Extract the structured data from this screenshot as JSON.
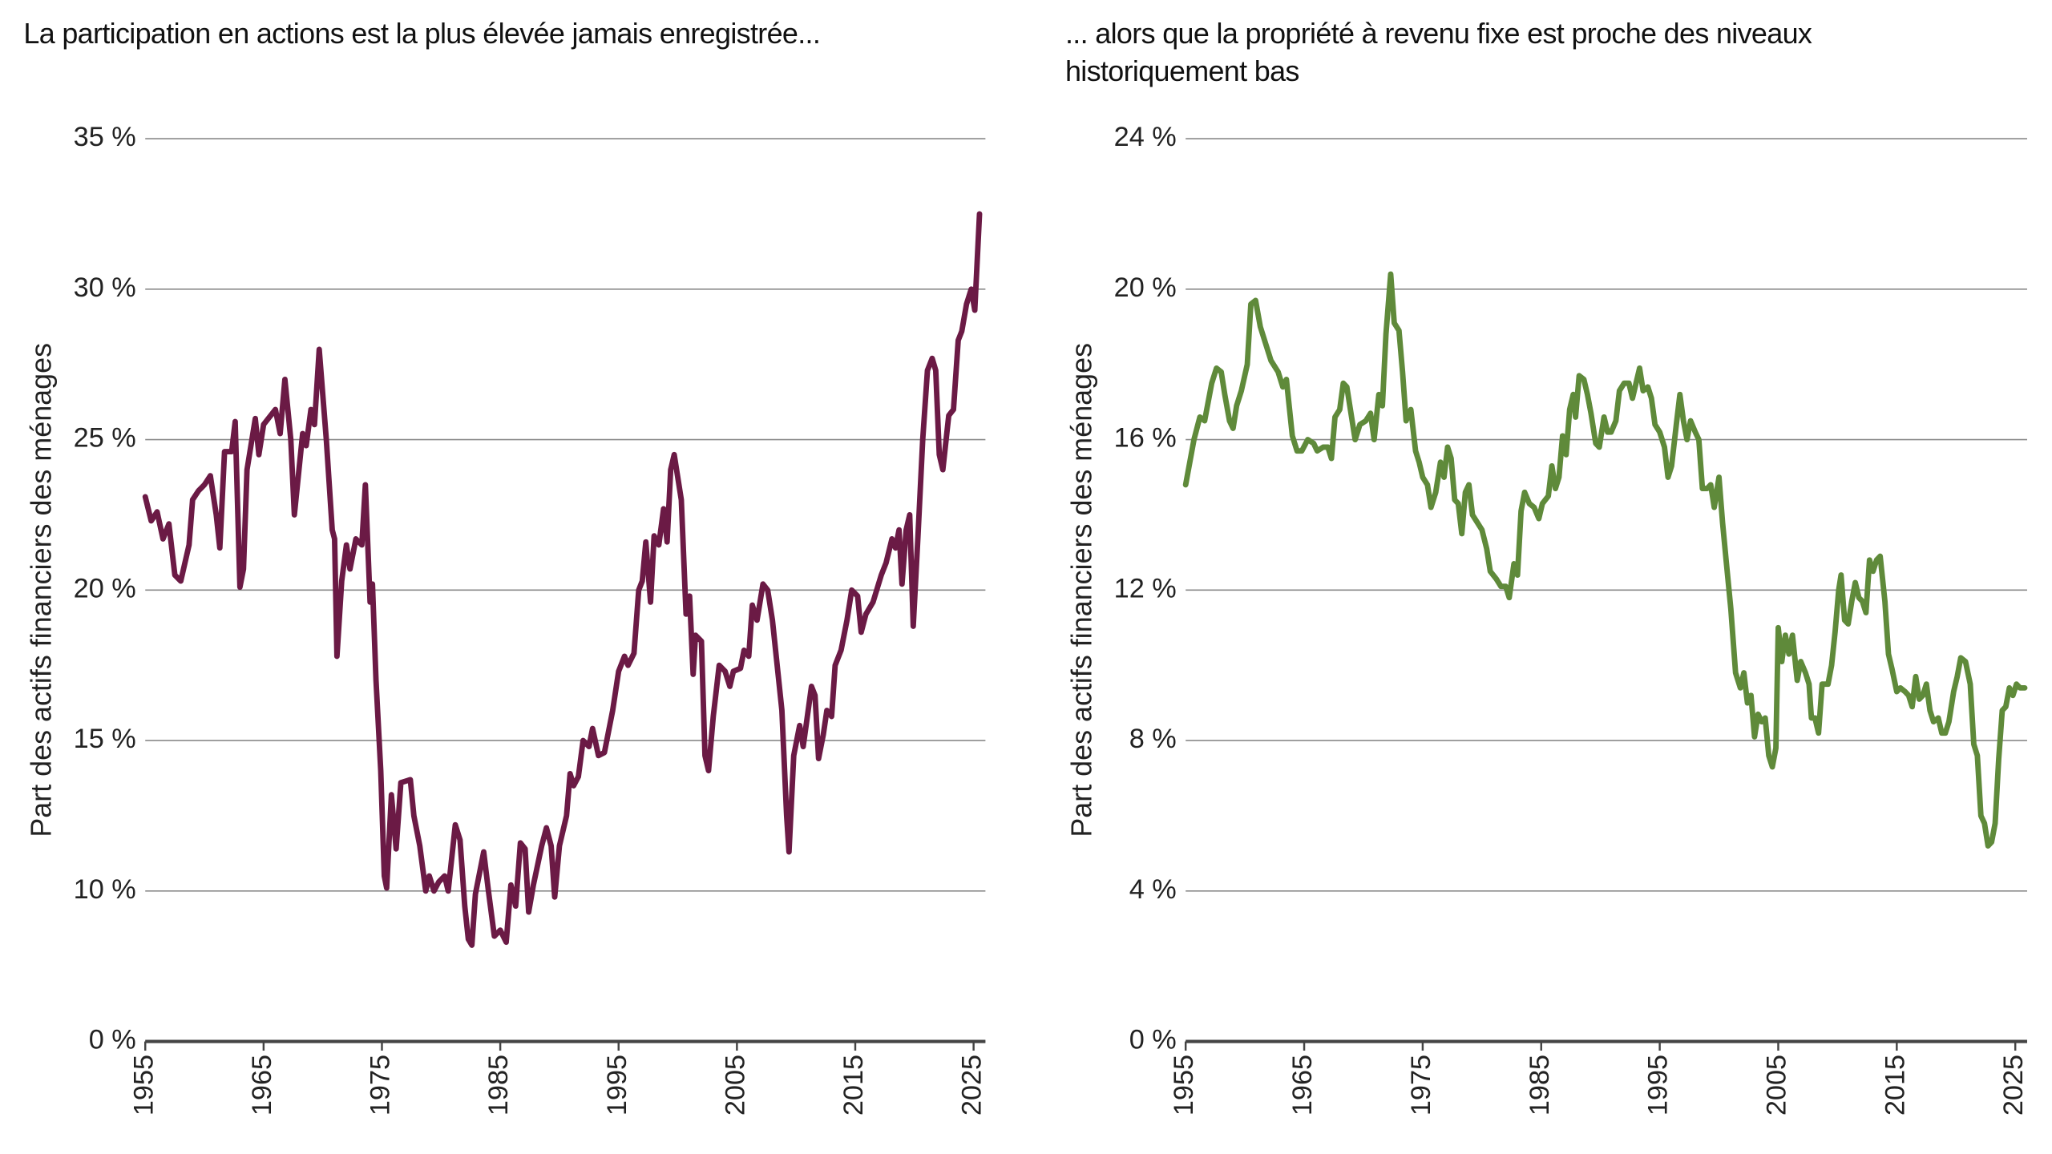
{
  "chart_data": [
    {
      "type": "line",
      "title": "La participation en actions est la plus élevée jamais enregistrée...",
      "ylabel": "Part des actifs financiers des ménages",
      "color": "#6b1a45",
      "xlim": [
        1955,
        2026
      ],
      "xticks": [
        1955,
        1965,
        1975,
        1985,
        1995,
        2005,
        2015,
        2025
      ],
      "ylim": [
        0,
        35
      ],
      "y_break": [
        0,
        5
      ],
      "yticks": [
        {
          "value": 0,
          "label": "0 %"
        },
        {
          "value": 10,
          "label": "10 %"
        },
        {
          "value": 15,
          "label": "15 %"
        },
        {
          "value": 20,
          "label": "20 %"
        },
        {
          "value": 25,
          "label": "25 %"
        },
        {
          "value": 30,
          "label": "30 %"
        },
        {
          "value": 35,
          "label": "35 %"
        }
      ],
      "grid": true,
      "x": [
        1955.0,
        1955.5,
        1956.0,
        1956.5,
        1957.0,
        1957.5,
        1958.0,
        1958.7,
        1959.0,
        1959.5,
        1960.0,
        1960.5,
        1961.0,
        1961.3,
        1961.7,
        1962.3,
        1962.6,
        1963.0,
        1963.3,
        1963.6,
        1964.3,
        1964.6,
        1965.0,
        1966.0,
        1966.4,
        1966.8,
        1967.3,
        1967.6,
        1968.3,
        1968.6,
        1969.0,
        1969.3,
        1969.7,
        1970.3,
        1970.8,
        1971.0,
        1971.2,
        1971.6,
        1972.0,
        1972.3,
        1972.8,
        1973.3,
        1973.6,
        1974.0,
        1974.2,
        1974.5,
        1974.9,
        1975.2,
        1975.4,
        1975.8,
        1976.2,
        1976.6,
        1977.4,
        1977.7,
        1978.2,
        1978.7,
        1979.0,
        1979.4,
        1979.8,
        1980.3,
        1980.6,
        1981.2,
        1981.6,
        1982.0,
        1982.3,
        1982.6,
        1982.9,
        1983.6,
        1984.0,
        1984.5,
        1985.0,
        1985.5,
        1985.9,
        1986.3,
        1986.7,
        1987.1,
        1987.4,
        1987.8,
        1988.5,
        1988.9,
        1989.3,
        1989.6,
        1990.0,
        1990.6,
        1990.9,
        1991.2,
        1991.6,
        1992.0,
        1992.5,
        1992.8,
        1993.3,
        1993.8,
        1994.5,
        1995.0,
        1995.5,
        1995.8,
        1996.3,
        1996.7,
        1997.0,
        1997.3,
        1997.7,
        1998.0,
        1998.4,
        1998.8,
        1999.1,
        1999.4,
        1999.7,
        2000.3,
        2000.7,
        2001.0,
        2001.3,
        2001.5,
        2002.0,
        2002.3,
        2002.6,
        2003.0,
        2003.5,
        2004.0,
        2004.4,
        2004.7,
        2005.3,
        2005.6,
        2006.0,
        2006.3,
        2006.7,
        2007.2,
        2007.6,
        2008.0,
        2008.8,
        2009.2,
        2009.4,
        2009.8,
        2010.3,
        2010.6,
        2011.3,
        2011.6,
        2011.9,
        2012.3,
        2012.6,
        2013.0,
        2013.3,
        2013.8,
        2014.3,
        2014.7,
        2015.2,
        2015.5,
        2015.9,
        2016.5,
        2017.2,
        2017.6,
        2018.1,
        2018.4,
        2018.7,
        2018.95,
        2019.3,
        2019.6,
        2019.9,
        2020.3,
        2020.7,
        2021.1,
        2021.5,
        2021.8,
        2022.1,
        2022.4,
        2022.9,
        2023.3,
        2023.7,
        2024.0,
        2024.4,
        2024.8,
        2025.1,
        2025.5
      ],
      "values": [
        23.1,
        22.3,
        22.6,
        21.7,
        22.2,
        20.5,
        20.3,
        21.5,
        23.0,
        23.3,
        23.5,
        23.8,
        22.5,
        21.4,
        24.6,
        24.6,
        25.6,
        20.1,
        20.7,
        24.0,
        25.7,
        24.5,
        25.5,
        26.0,
        25.2,
        27.0,
        25.0,
        22.5,
        25.2,
        24.8,
        26.0,
        25.5,
        28.0,
        25.0,
        22.0,
        21.7,
        17.8,
        20.3,
        21.5,
        20.7,
        21.7,
        21.5,
        23.5,
        19.6,
        20.2,
        17.0,
        14.0,
        10.5,
        10.1,
        13.2,
        11.4,
        13.6,
        13.7,
        12.5,
        11.5,
        10.0,
        10.5,
        10.0,
        10.3,
        10.5,
        10.0,
        12.2,
        11.7,
        9.5,
        8.4,
        8.2,
        9.9,
        11.3,
        10.0,
        8.5,
        8.7,
        8.3,
        10.2,
        9.5,
        11.6,
        11.4,
        9.3,
        10.2,
        11.5,
        12.1,
        11.5,
        9.8,
        11.5,
        12.5,
        13.9,
        13.5,
        13.8,
        15.0,
        14.8,
        15.4,
        14.5,
        14.6,
        16.0,
        17.3,
        17.8,
        17.5,
        17.9,
        20.0,
        20.3,
        21.6,
        19.6,
        21.8,
        21.5,
        22.7,
        21.6,
        24.0,
        24.5,
        23.0,
        19.2,
        19.8,
        17.2,
        18.5,
        18.3,
        14.5,
        14.0,
        15.8,
        17.5,
        17.3,
        16.8,
        17.3,
        17.4,
        18.0,
        17.8,
        19.5,
        19.0,
        20.2,
        20.0,
        19.0,
        16.0,
        12.5,
        11.3,
        14.5,
        15.5,
        14.8,
        16.8,
        16.5,
        14.4,
        15.2,
        16.0,
        15.8,
        17.5,
        18.0,
        19.0,
        20.0,
        19.8,
        18.6,
        19.2,
        19.6,
        20.5,
        20.9,
        21.7,
        21.4,
        22.0,
        20.2,
        22.0,
        22.5,
        18.8,
        21.8,
        25.0,
        27.3,
        27.7,
        27.3,
        24.5,
        24.0,
        25.8,
        26.0,
        28.3,
        28.6,
        29.5,
        30.0,
        29.3,
        32.5
      ]
    },
    {
      "type": "line",
      "title": "... alors que la propriété à revenu fixe est proche des niveaux historiquement bas",
      "ylabel": "Part des actifs financiers des ménages",
      "color": "#5f8a3a",
      "xlim": [
        1955,
        2026
      ],
      "xticks": [
        1955,
        1965,
        1975,
        1985,
        1995,
        2005,
        2015,
        2025
      ],
      "ylim": [
        0,
        24
      ],
      "yticks": [
        {
          "value": 0,
          "label": "0 %"
        },
        {
          "value": 4,
          "label": "4 %"
        },
        {
          "value": 8,
          "label": "8 %"
        },
        {
          "value": 12,
          "label": "12 %"
        },
        {
          "value": 16,
          "label": "16 %"
        },
        {
          "value": 20,
          "label": "20 %"
        },
        {
          "value": 24,
          "label": "24 %"
        }
      ],
      "grid": true,
      "x": [
        1955.0,
        1955.7,
        1956.2,
        1956.6,
        1957.2,
        1957.6,
        1958.0,
        1958.3,
        1958.7,
        1959.0,
        1959.3,
        1959.7,
        1960.2,
        1960.5,
        1960.9,
        1961.3,
        1961.8,
        1962.2,
        1962.8,
        1963.2,
        1963.5,
        1964.0,
        1964.4,
        1964.8,
        1965.3,
        1965.8,
        1966.1,
        1966.6,
        1967.0,
        1967.3,
        1967.6,
        1968.0,
        1968.3,
        1968.6,
        1969.0,
        1969.3,
        1969.7,
        1970.2,
        1970.6,
        1970.9,
        1971.3,
        1971.6,
        1971.9,
        1972.3,
        1972.6,
        1973.0,
        1973.3,
        1973.6,
        1974.0,
        1974.4,
        1974.7,
        1975.0,
        1975.4,
        1975.7,
        1976.1,
        1976.5,
        1976.8,
        1977.1,
        1977.4,
        1977.7,
        1978.0,
        1978.3,
        1978.6,
        1978.9,
        1979.2,
        1979.6,
        1980.0,
        1980.4,
        1980.7,
        1981.2,
        1981.6,
        1982.0,
        1982.3,
        1982.7,
        1983.0,
        1983.3,
        1983.6,
        1984.0,
        1984.4,
        1984.8,
        1985.1,
        1985.6,
        1985.9,
        1986.2,
        1986.5,
        1986.8,
        1987.1,
        1987.4,
        1987.7,
        1987.9,
        1988.2,
        1988.6,
        1988.9,
        1989.2,
        1989.6,
        1989.9,
        1990.3,
        1990.6,
        1990.9,
        1991.3,
        1991.6,
        1992.0,
        1992.4,
        1992.7,
        1993.0,
        1993.3,
        1993.6,
        1994.0,
        1994.3,
        1994.6,
        1995.0,
        1995.4,
        1995.7,
        1996.0,
        1996.4,
        1996.7,
        1997.0,
        1997.3,
        1997.6,
        1998.0,
        1998.3,
        1998.6,
        1999.0,
        1999.3,
        1999.6,
        2000.0,
        2000.3,
        2000.6,
        2001.0,
        2001.4,
        2001.8,
        2002.1,
        2002.4,
        2002.7,
        2003.0,
        2003.3,
        2003.6,
        2003.9,
        2004.2,
        2004.5,
        2004.8,
        2005.0,
        2005.3,
        2005.6,
        2005.9,
        2006.2,
        2006.6,
        2006.9,
        2007.3,
        2007.6,
        2007.8,
        2008.1,
        2008.4,
        2008.7,
        2009.2,
        2009.5,
        2009.8,
        2010.1,
        2010.3,
        2010.6,
        2010.9,
        2011.2,
        2011.5,
        2011.8,
        2012.1,
        2012.4,
        2012.7,
        2013.0,
        2013.3,
        2013.6,
        2014.0,
        2014.3,
        2014.6,
        2015.0,
        2015.3,
        2015.7,
        2016.0,
        2016.3,
        2016.6,
        2016.9,
        2017.2,
        2017.5,
        2017.8,
        2018.1,
        2018.5,
        2018.8,
        2019.1,
        2019.4,
        2019.8,
        2020.1,
        2020.4,
        2020.8,
        2021.2,
        2021.5,
        2021.8,
        2022.1,
        2022.4,
        2022.7,
        2023.0,
        2023.3,
        2023.6,
        2023.9,
        2024.2,
        2024.5,
        2024.8,
        2025.1,
        2025.4,
        2025.8
      ],
      "values": [
        14.8,
        16.0,
        16.6,
        16.5,
        17.5,
        17.9,
        17.8,
        17.2,
        16.5,
        16.3,
        16.9,
        17.3,
        18.0,
        19.6,
        19.7,
        19.0,
        18.5,
        18.1,
        17.8,
        17.4,
        17.6,
        16.1,
        15.7,
        15.7,
        16.0,
        15.9,
        15.7,
        15.8,
        15.8,
        15.5,
        16.6,
        16.8,
        17.5,
        17.4,
        16.6,
        16.0,
        16.4,
        16.5,
        16.7,
        16.0,
        17.2,
        16.9,
        18.8,
        20.4,
        19.1,
        18.9,
        17.8,
        16.5,
        16.8,
        15.7,
        15.4,
        15.0,
        14.8,
        14.2,
        14.6,
        15.4,
        15.0,
        15.8,
        15.5,
        14.4,
        14.3,
        13.5,
        14.6,
        14.8,
        14.0,
        13.8,
        13.6,
        13.1,
        12.5,
        12.3,
        12.1,
        12.1,
        11.8,
        12.7,
        12.4,
        14.1,
        14.6,
        14.3,
        14.2,
        13.9,
        14.3,
        14.5,
        15.3,
        14.7,
        15.0,
        16.1,
        15.6,
        16.8,
        17.2,
        16.6,
        17.7,
        17.6,
        17.2,
        16.7,
        15.9,
        15.8,
        16.6,
        16.2,
        16.2,
        16.5,
        17.3,
        17.5,
        17.5,
        17.1,
        17.5,
        17.9,
        17.3,
        17.4,
        17.1,
        16.4,
        16.2,
        15.8,
        15.0,
        15.3,
        16.4,
        17.2,
        16.5,
        16.0,
        16.5,
        16.2,
        16.0,
        14.7,
        14.7,
        14.8,
        14.2,
        15.0,
        13.8,
        12.8,
        11.5,
        9.8,
        9.4,
        9.8,
        9.0,
        9.2,
        8.1,
        8.7,
        8.5,
        8.6,
        7.6,
        7.3,
        7.8,
        11.0,
        10.1,
        10.8,
        10.3,
        10.8,
        9.6,
        10.1,
        9.8,
        9.5,
        8.6,
        8.6,
        8.2,
        9.5,
        9.5,
        10.0,
        10.9,
        12.0,
        12.4,
        11.2,
        11.1,
        11.7,
        12.2,
        11.8,
        11.7,
        11.4,
        12.8,
        12.5,
        12.8,
        12.9,
        11.7,
        10.3,
        9.9,
        9.3,
        9.4,
        9.3,
        9.2,
        8.9,
        9.7,
        9.1,
        9.2,
        9.5,
        8.8,
        8.5,
        8.6,
        8.2,
        8.2,
        8.5,
        9.3,
        9.7,
        10.2,
        10.1,
        9.5,
        7.9,
        7.6,
        6.0,
        5.8,
        5.2,
        5.3,
        5.8,
        7.5,
        8.8,
        8.9,
        9.4,
        9.2,
        9.5,
        9.4,
        9.4
      ]
    }
  ]
}
